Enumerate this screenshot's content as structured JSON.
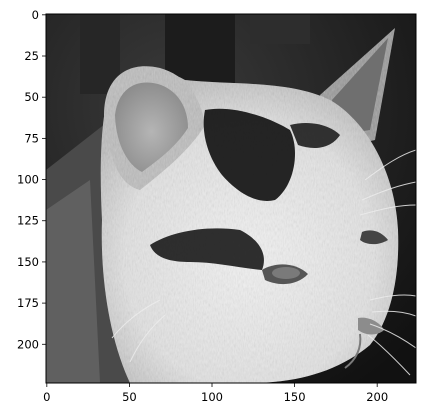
{
  "image": {
    "subject": "cat-head-grayscale",
    "colormap": "gray"
  },
  "axes": {
    "x_ticks": [
      0,
      50,
      100,
      150,
      200
    ],
    "y_ticks": [
      0,
      25,
      50,
      75,
      100,
      125,
      150,
      175,
      200
    ],
    "x_range": [
      -0.5,
      223.5
    ],
    "y_range": [
      223.5,
      -0.5
    ]
  },
  "colors": {
    "background": "#ffffff",
    "frame": "#000000"
  }
}
